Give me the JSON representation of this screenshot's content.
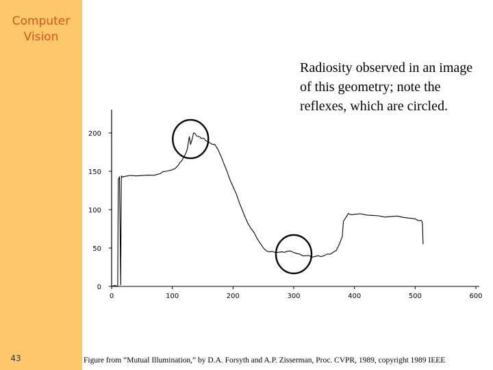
{
  "slide": {
    "course_title_line1": "Computer",
    "course_title_line2": "Vision",
    "page_number": "43",
    "caption": "Radiosity observed in an image of this geometry; note the reflexes, which are circled.",
    "credit": "Figure from “Mutual Illumination,” by D.A. Forsyth and A.P. Zisserman, Proc. CVPR, 1989, copyright 1989 IEEE",
    "colors": {
      "sidebar": "#fcc86a",
      "course_title": "#d9531e"
    }
  },
  "chart_data": {
    "type": "line",
    "title": "",
    "xlabel": "",
    "ylabel": "",
    "xlim": [
      0,
      600
    ],
    "ylim": [
      0,
      200
    ],
    "x_ticks": [
      "0",
      "100",
      "200",
      "300",
      "400",
      "500",
      "600"
    ],
    "y_ticks": [
      "0",
      "50",
      "100",
      "150",
      "200"
    ],
    "series": [
      {
        "x": [
          0,
          10,
          11,
          13,
          15,
          16,
          20,
          40,
          60,
          80,
          90,
          100,
          110,
          115,
          120,
          125,
          128,
          130,
          135,
          140,
          145,
          150,
          155,
          160,
          170,
          180,
          190,
          200,
          210,
          220,
          230,
          240,
          250,
          260,
          270,
          280,
          290,
          300,
          310,
          320,
          330,
          340,
          350,
          360,
          370,
          380,
          382,
          390,
          400,
          420,
          440,
          460,
          480,
          500,
          510,
          512,
          513
        ],
        "y": [
          0,
          0,
          140,
          143,
          2,
          144,
          143,
          144,
          145,
          147,
          150,
          152,
          158,
          163,
          170,
          180,
          195,
          185,
          200,
          196,
          195,
          193,
          190,
          188,
          185,
          170,
          150,
          130,
          110,
          90,
          75,
          62,
          50,
          45,
          44,
          45,
          46,
          44,
          42,
          40,
          38,
          40,
          40,
          42,
          47,
          65,
          85,
          95,
          94,
          93,
          92,
          91,
          90,
          88,
          86,
          82,
          55
        ]
      }
    ],
    "annotations": [
      {
        "shape": "circle",
        "x": 130,
        "y": 192
      },
      {
        "shape": "circle",
        "x": 300,
        "y": 42
      }
    ],
    "grid": false,
    "legend": "none"
  }
}
